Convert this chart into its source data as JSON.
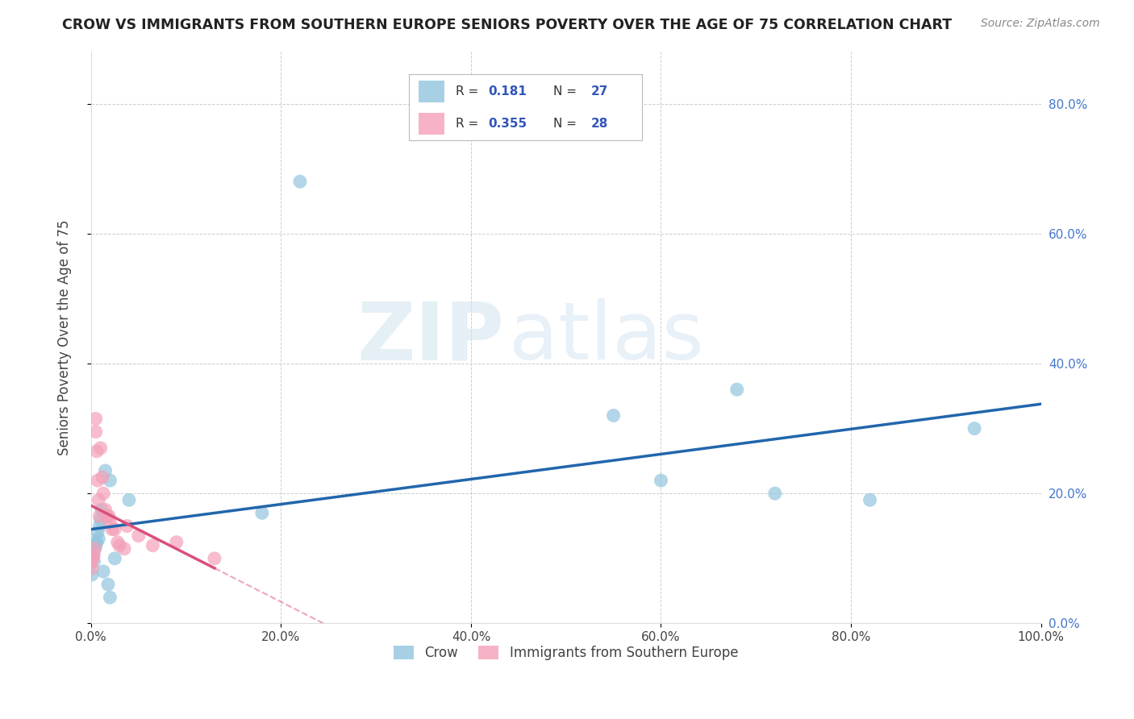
{
  "title": "CROW VS IMMIGRANTS FROM SOUTHERN EUROPE SENIORS POVERTY OVER THE AGE OF 75 CORRELATION CHART",
  "source": "Source: ZipAtlas.com",
  "ylabel": "Seniors Poverty Over the Age of 75",
  "watermark_zip": "ZIP",
  "watermark_atlas": "atlas",
  "crow_color": "#92c5de",
  "immigrants_color": "#f4a0b8",
  "crow_line_color": "#2166ac",
  "immigrants_line_color": "#d9507a",
  "background_color": "#ffffff",
  "grid_color": "#c8c8c8",
  "crow_x": [
    0.0,
    0.001,
    0.002,
    0.003,
    0.004,
    0.005,
    0.006,
    0.007,
    0.008,
    0.009,
    0.01,
    0.011,
    0.013,
    0.015,
    0.018,
    0.02,
    0.02,
    0.025,
    0.04,
    0.18,
    0.22,
    0.55,
    0.6,
    0.68,
    0.72,
    0.82,
    0.93
  ],
  "crow_y": [
    0.105,
    0.075,
    0.105,
    0.095,
    0.115,
    0.12,
    0.125,
    0.14,
    0.13,
    0.15,
    0.16,
    0.175,
    0.08,
    0.235,
    0.06,
    0.22,
    0.04,
    0.1,
    0.19,
    0.17,
    0.68,
    0.32,
    0.22,
    0.36,
    0.2,
    0.19,
    0.3
  ],
  "immigrants_x": [
    0.0,
    0.001,
    0.002,
    0.003,
    0.004,
    0.005,
    0.005,
    0.006,
    0.007,
    0.008,
    0.009,
    0.01,
    0.012,
    0.013,
    0.015,
    0.017,
    0.019,
    0.02,
    0.022,
    0.025,
    0.028,
    0.03,
    0.035,
    0.038,
    0.05,
    0.065,
    0.09,
    0.13
  ],
  "immigrants_y": [
    0.095,
    0.085,
    0.1,
    0.105,
    0.115,
    0.295,
    0.315,
    0.265,
    0.22,
    0.19,
    0.165,
    0.27,
    0.225,
    0.2,
    0.175,
    0.165,
    0.165,
    0.155,
    0.145,
    0.145,
    0.125,
    0.12,
    0.115,
    0.15,
    0.135,
    0.12,
    0.125,
    0.1
  ],
  "xlim": [
    0.0,
    1.0
  ],
  "ylim": [
    0.0,
    0.88
  ],
  "ytick_values": [
    0.0,
    0.2,
    0.4,
    0.6,
    0.8
  ],
  "ytick_labels": [
    "0.0%",
    "20.0%",
    "40.0%",
    "60.0%",
    "80.0%"
  ],
  "xtick_values": [
    0.0,
    0.2,
    0.4,
    0.6,
    0.8,
    1.0
  ],
  "xtick_labels": [
    "0.0%",
    "20.0%",
    "40.0%",
    "60.0%",
    "80.0%",
    "100.0%"
  ],
  "crow_label": "Crow",
  "immigrants_label": "Immigrants from Southern Europe",
  "legend_r1": "R =  0.181",
  "legend_n1": "N = 27",
  "legend_r2": "R = 0.355",
  "legend_n2": "N = 28"
}
